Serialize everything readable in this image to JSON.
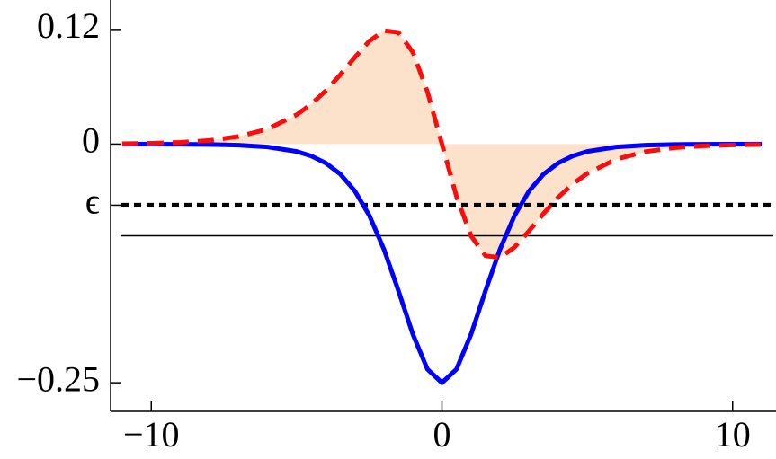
{
  "chart_data": {
    "type": "line",
    "x": [
      -11,
      -10,
      -9,
      -8,
      -7,
      -6,
      -5,
      -4.5,
      -4,
      -3.5,
      -3,
      -2.5,
      -2,
      -1.5,
      -1,
      -0.5,
      0,
      0.5,
      1,
      1.5,
      2,
      2.5,
      3,
      3.5,
      4,
      4.5,
      5,
      6,
      7,
      8,
      9,
      10,
      11
    ],
    "series": [
      {
        "color": "#fb0d0d",
        "dashed": true,
        "fill": "#fde2cb",
        "values": [
          0.0004,
          0.0009,
          0.0018,
          0.0038,
          0.0079,
          0.0158,
          0.0307,
          0.0418,
          0.0558,
          0.0726,
          0.0908,
          0.1079,
          0.1189,
          0.117,
          0.0962,
          0.0549,
          0,
          -0.0549,
          -0.0962,
          -0.117,
          -0.1189,
          -0.1079,
          -0.0908,
          -0.0726,
          -0.0558,
          -0.0418,
          -0.0307,
          -0.0158,
          -0.0079,
          -0.0038,
          -0.0018,
          -0.0009,
          -0.0004
        ]
      },
      {
        "color": "#0000ff",
        "dashed": false,
        "values": [
          0,
          -0.0001,
          -0.0002,
          -0.0004,
          -0.0011,
          -0.003,
          -0.0077,
          -0.0124,
          -0.0198,
          -0.0314,
          -0.049,
          -0.0747,
          -0.1099,
          -0.1534,
          -0.1993,
          -0.2358,
          -0.25,
          -0.2358,
          -0.1993,
          -0.1534,
          -0.1099,
          -0.0747,
          -0.049,
          -0.0314,
          -0.0198,
          -0.0124,
          -0.0077,
          -0.003,
          -0.0011,
          -0.0004,
          -0.0002,
          -0.0001,
          0
        ]
      }
    ],
    "hlines": [
      {
        "value": -0.064,
        "style": "dotted"
      },
      {
        "value": -0.096,
        "style": "thin"
      }
    ],
    "xlim": [
      -11.4,
      11.4
    ],
    "ylim": [
      -0.28,
      0.15
    ],
    "xticks": [
      {
        "value": -10,
        "label": "−10"
      },
      0,
      10
    ],
    "yticks": [
      {
        "value": -0.25,
        "label": "−0.25"
      },
      {
        "value": -0.064,
        "label": "ϵ"
      },
      0,
      0.12
    ],
    "grid": false
  }
}
